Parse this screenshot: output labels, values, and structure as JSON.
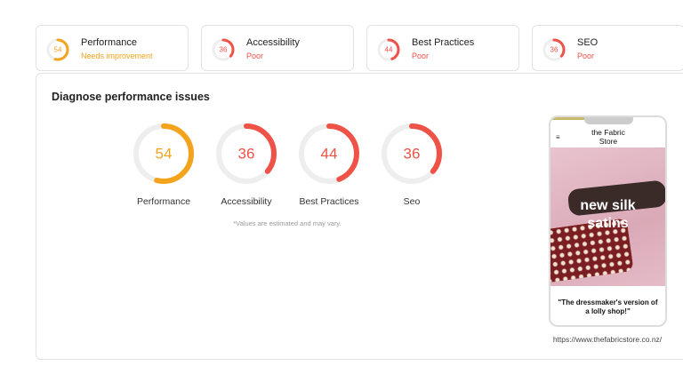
{
  "tabs": [
    {
      "score": 54,
      "name": "Performance",
      "status": "Needs improvement",
      "color": "#f4a31c"
    },
    {
      "score": 36,
      "name": "Accessibility",
      "status": "Poor",
      "color": "#ef5247"
    },
    {
      "score": 44,
      "name": "Best Practices",
      "status": "Poor",
      "color": "#ef5247"
    },
    {
      "score": 36,
      "name": "SEO",
      "status": "Poor",
      "color": "#ef5247"
    }
  ],
  "panel": {
    "title": "Diagnose performance issues",
    "gauges": [
      {
        "score": 54,
        "label": "Performance",
        "color": "#f4a31c"
      },
      {
        "score": 36,
        "label": "Accessibility",
        "color": "#ef5247"
      },
      {
        "score": 44,
        "label": "Best Practices",
        "color": "#ef5247"
      },
      {
        "score": 36,
        "label": "Seo",
        "color": "#ef5247"
      }
    ],
    "note": "*Values are estimated and may vary."
  },
  "preview": {
    "brand_line1": "the Fabric",
    "brand_line2": "Store",
    "headline_line1": "new silk",
    "headline_line2": "satins",
    "quote": "\"The dressmaker's version of a lolly shop!\"",
    "url": "https://www.thefabricstore.co.nz/"
  }
}
